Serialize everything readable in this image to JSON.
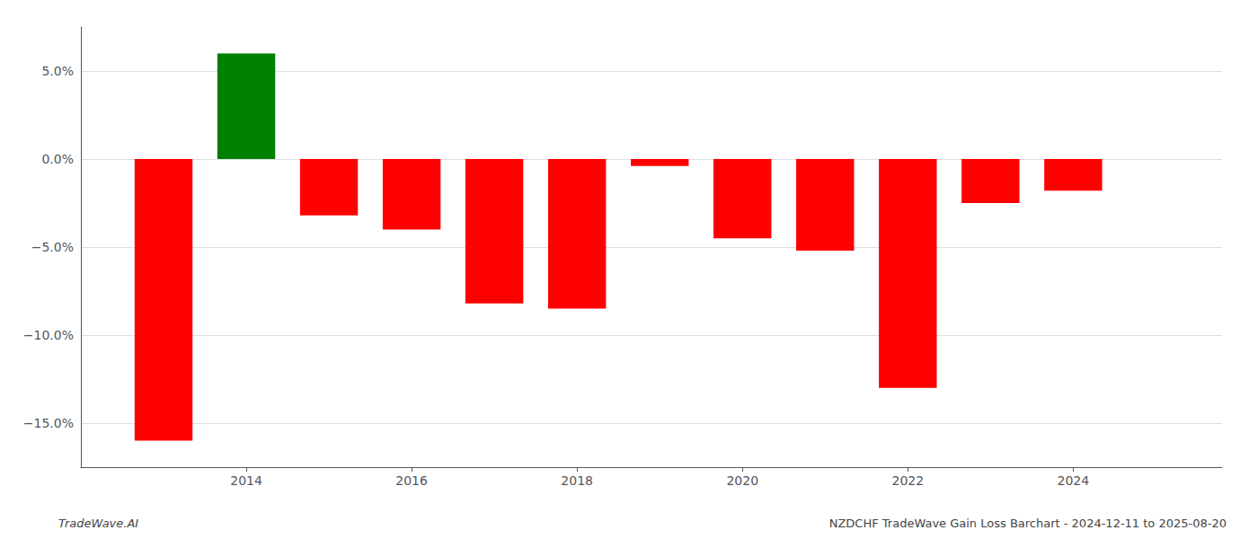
{
  "chart_data": {
    "type": "bar",
    "title": "NZDCHF TradeWave Gain Loss Barchart - 2024-12-11 to 2025-08-20",
    "annotations": [
      "TradeWave.AI"
    ],
    "x": [
      2013,
      2014,
      2015,
      2016,
      2017,
      2018,
      2019,
      2020,
      2021,
      2022,
      2023,
      2024
    ],
    "values": [
      -16.0,
      6.0,
      -3.2,
      -4.0,
      -8.2,
      -8.5,
      -0.4,
      -4.5,
      -5.2,
      -13.0,
      -2.5,
      -1.8
    ],
    "colors": [
      "#ff0000",
      "#008000",
      "#ff0000",
      "#ff0000",
      "#ff0000",
      "#ff0000",
      "#ff0000",
      "#ff0000",
      "#ff0000",
      "#ff0000",
      "#ff0000",
      "#ff0000"
    ],
    "xlim": [
      2012.0,
      2025.8
    ],
    "xticks": [
      2014,
      2016,
      2018,
      2020,
      2022,
      2024
    ],
    "ylim": [
      -17.5,
      7.5
    ],
    "yticks": [
      {
        "value": -15.0,
        "label": "−15.0%"
      },
      {
        "value": -10.0,
        "label": "−10.0%"
      },
      {
        "value": -5.0,
        "label": "−5.0%"
      },
      {
        "value": 0.0,
        "label": "0.0%"
      },
      {
        "value": 5.0,
        "label": "5.0%"
      }
    ],
    "grid": true
  }
}
